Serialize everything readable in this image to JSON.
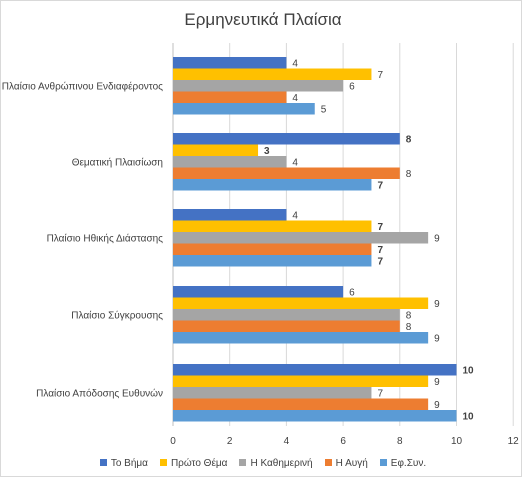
{
  "chart_data": {
    "type": "bar",
    "orientation": "horizontal",
    "title": "Ερμηνευτικά Πλαίσια",
    "categories": [
      "Πλαίσιο Ανθρώπινου Ενδιαφέροντος",
      "Θεματική Πλαισίωση",
      "Πλαίσιο Ηθικής Διάστασης",
      "Πλαίσιο Σύγκρουσης",
      "Πλαίσιο Απόδοσης Ευθυνών"
    ],
    "series": [
      {
        "name": "Το Βήμα",
        "color": "#4472c4",
        "values": [
          4,
          8,
          4,
          6,
          10
        ]
      },
      {
        "name": "Πρώτο Θέμα",
        "color": "#ffc000",
        "values": [
          7,
          3,
          7,
          9,
          9
        ]
      },
      {
        "name": "Η Καθημερινή",
        "color": "#a5a5a5",
        "values": [
          6,
          4,
          9,
          8,
          7
        ]
      },
      {
        "name": "Η Αυγή",
        "color": "#ed7d31",
        "values": [
          4,
          8,
          7,
          8,
          9
        ]
      },
      {
        "name": "Εφ.Συν.",
        "color": "#5b9bd5",
        "values": [
          5,
          7,
          7,
          9,
          10
        ]
      }
    ],
    "bold_labels": [
      [
        false,
        false,
        false,
        false,
        false
      ],
      [
        true,
        true,
        false,
        false,
        true
      ],
      [
        false,
        true,
        false,
        true,
        true
      ],
      [
        false,
        false,
        false,
        false,
        false
      ],
      [
        true,
        false,
        false,
        false,
        true
      ]
    ],
    "xlim": [
      0,
      12
    ],
    "xticks": [
      "0",
      "2",
      "4",
      "6",
      "8",
      "10",
      "12"
    ],
    "grid": true,
    "legend_position": "bottom"
  }
}
